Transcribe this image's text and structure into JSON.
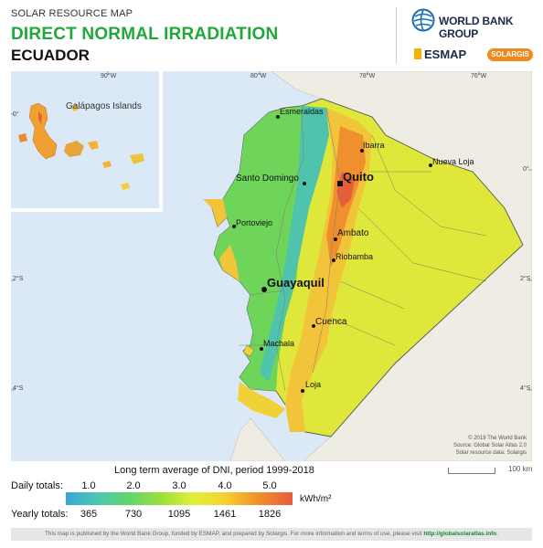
{
  "header": {
    "subtitle": "SOLAR RESOURCE MAP",
    "title": "DIRECT NORMAL IRRADIATION",
    "country": "ECUADOR"
  },
  "logos": {
    "world_bank": "WORLD BANK GROUP",
    "esmap": "ESMAP",
    "solargis": "SOLARGIS"
  },
  "map": {
    "inset_label": "Galápagos Islands",
    "inset_lon_tick": "90°W",
    "inset_lat_tick": "0°",
    "lon_ticks": [
      "80°W",
      "78°W",
      "76°W"
    ],
    "lat_ticks_left": [
      "2°S",
      "4°S"
    ],
    "lat_ticks_right": [
      "0°",
      "2°S",
      "4°S"
    ],
    "cities": {
      "esmeraldas": "Esmeraldas",
      "ibarra": "Ibarra",
      "nueva_loja": "Nueva Loja",
      "santo_domingo": "Santo Domingo",
      "quito": "Quito",
      "portoviejo": "Portoviejo",
      "ambato": "Ambato",
      "riobamba": "Riobamba",
      "guayaquil": "Guayaquil",
      "cuenca": "Cuenca",
      "machala": "Machala",
      "loja": "Loja"
    },
    "credits": [
      "© 2019 The World Bank",
      "Source: Global Solar Atlas 2.0",
      "Solar resource data: Solargis"
    ],
    "scale_label": "100 km",
    "colors": {
      "ocean": "#dbe9f7",
      "land_outside": "#efece4"
    }
  },
  "legend": {
    "title": "Long term average of DNI, period 1999-2018",
    "daily_label": "Daily totals:",
    "yearly_label": "Yearly totals:",
    "daily_ticks": [
      "1.0",
      "2.0",
      "3.0",
      "4.0",
      "5.0"
    ],
    "yearly_ticks": [
      "365",
      "730",
      "1095",
      "1461",
      "1826"
    ],
    "unit": "kWh/m²"
  },
  "footer": {
    "text": "This map is published by the World Bank Group, funded by ESMAP, and prepared by Solargis. For more information and terms of use, please visit",
    "link": "http://globalsolaratlas.info",
    "end": "."
  }
}
